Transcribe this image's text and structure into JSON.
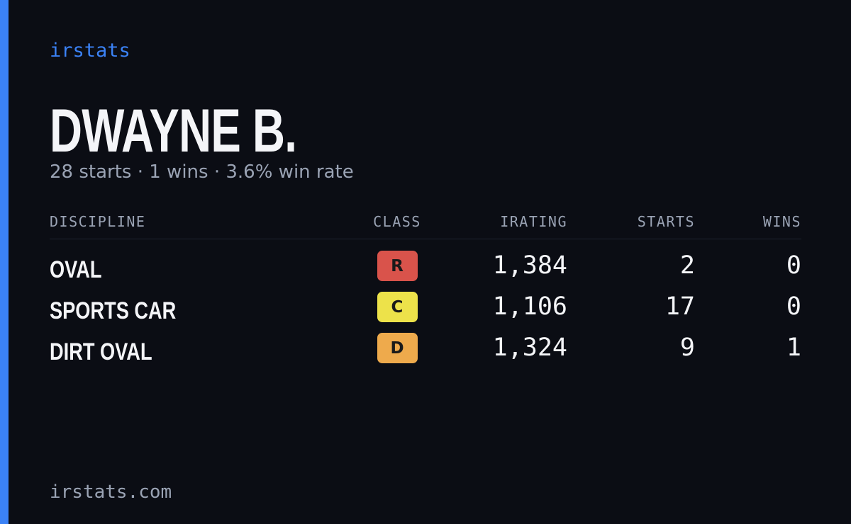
{
  "brand": "irstats",
  "profile": {
    "name": "DWAYNE B.",
    "summary": "28 starts · 1 wins · 3.6% win rate"
  },
  "table": {
    "columns": [
      "DISCIPLINE",
      "CLASS",
      "IRATING",
      "STARTS",
      "WINS"
    ],
    "rows": [
      {
        "discipline": "OVAL",
        "class": "R",
        "class_color": "#d9534b",
        "irating": "1,384",
        "starts": 2,
        "wins": 0
      },
      {
        "discipline": "SPORTS CAR",
        "class": "C",
        "class_color": "#ede24a",
        "irating": "1,106",
        "starts": 17,
        "wins": 0
      },
      {
        "discipline": "DIRT OVAL",
        "class": "D",
        "class_color": "#eeaa4c",
        "irating": "1,324",
        "starts": 9,
        "wins": 1
      }
    ]
  },
  "footer": "irstats.com"
}
